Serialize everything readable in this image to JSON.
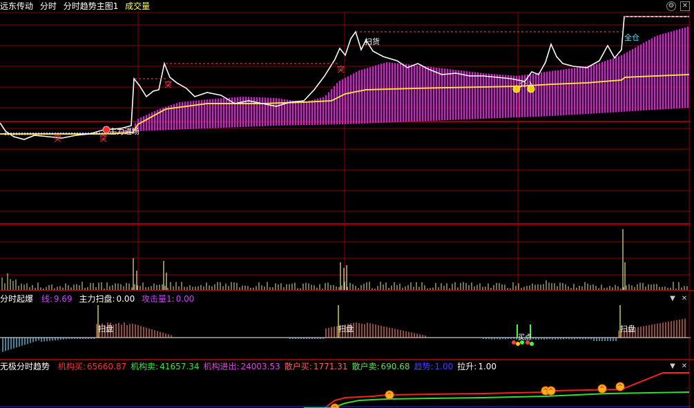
{
  "main": {
    "title": "远东传动",
    "mode": "分时",
    "indicator": "分时趋势主图1",
    "sub": "成交量",
    "labels": {
      "tu1": "突",
      "tu2": "突",
      "tu3": "突",
      "tu4": "突",
      "zhuli": "主力进场",
      "saohuo": "扫货",
      "quancang": "全仓",
      "jie": "介入"
    }
  },
  "volume": {},
  "fsqb": {
    "title": "分时起爆",
    "xian_label": "线:",
    "xian": "9.69",
    "zlsp_label": "主力扫盘:",
    "zlsp": "0.00",
    "gjl_label": "攻击量1:",
    "gjl": "0.00",
    "sp1": "扫盘",
    "sp2": "扫盘",
    "sp3": "扫盘",
    "maidian": "买点",
    "colors": {
      "xian": "#d040ff",
      "pos": "#f08070",
      "neg": "#70d8ff"
    }
  },
  "wjfsqs": {
    "title": "无极分时趋势",
    "items": [
      {
        "label": "机构买:",
        "value": "65660.87",
        "color": "#ff3030"
      },
      {
        "label": "机构卖:",
        "value": "41657.34",
        "color": "#40e040"
      },
      {
        "label": "机构进出:",
        "value": "24003.53",
        "color": "#e040e0"
      },
      {
        "label": "散户买:",
        "value": "1771.31",
        "color": "#ff6060"
      },
      {
        "label": "散户卖:",
        "value": "690.68",
        "color": "#60e060"
      },
      {
        "label": "趋势:",
        "value": "1.00",
        "color": "#4040ff"
      },
      {
        "label": "拉升:",
        "value": "1.00",
        "color": "#ffffff"
      }
    ]
  },
  "colors": {
    "price": "#ffffff",
    "avg": "#ffe040",
    "bars": "#d020d0",
    "grid": "#8a0000",
    "vol": "#e8e8a0"
  },
  "icons": [
    "settings-icon",
    "close-icon",
    "dropdown-icon"
  ]
}
